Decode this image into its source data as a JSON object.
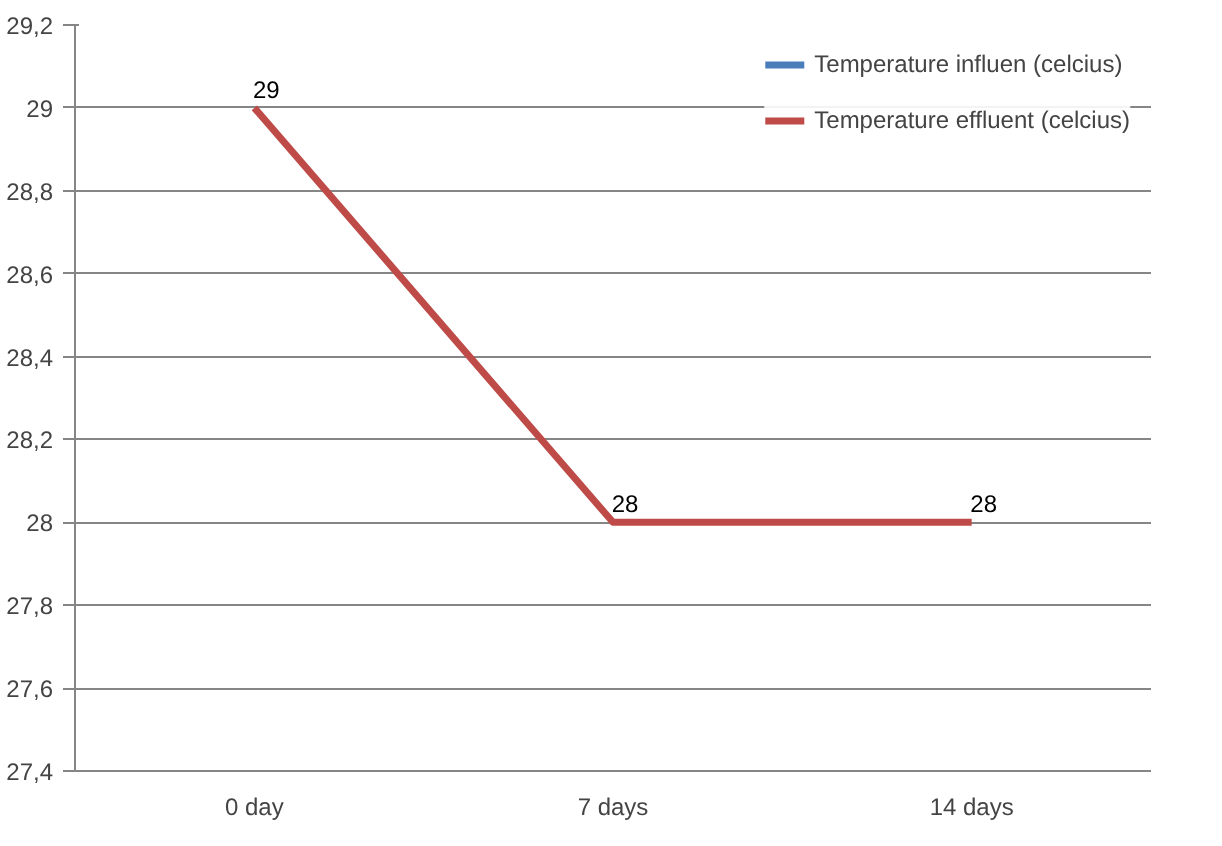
{
  "chart_data": {
    "type": "line",
    "categories": [
      "0 day",
      "7 days",
      "14 days"
    ],
    "series": [
      {
        "name": "Temperature influen (celcius)",
        "color": "#4a7ebb",
        "values": [
          null,
          null,
          null
        ]
      },
      {
        "name": "Temperature effluent (celcius)",
        "color": "#be4b48",
        "values": [
          29,
          28,
          28
        ]
      }
    ],
    "ylim": [
      27.4,
      29.2
    ],
    "yticks": [
      {
        "value": 27.4,
        "label": "27,4"
      },
      {
        "value": 27.6,
        "label": "27,6"
      },
      {
        "value": 27.8,
        "label": "27,8"
      },
      {
        "value": 28,
        "label": "28"
      },
      {
        "value": 28.2,
        "label": "28,2"
      },
      {
        "value": 28.4,
        "label": "28,4"
      },
      {
        "value": 28.6,
        "label": "28,6"
      },
      {
        "value": 28.8,
        "label": "28,8"
      },
      {
        "value": 29,
        "label": "29"
      },
      {
        "value": 29.2,
        "label": "29,2"
      }
    ],
    "grid": "y",
    "legend": "top right",
    "marker": "none",
    "line_style": "solid",
    "data_labels": true
  }
}
